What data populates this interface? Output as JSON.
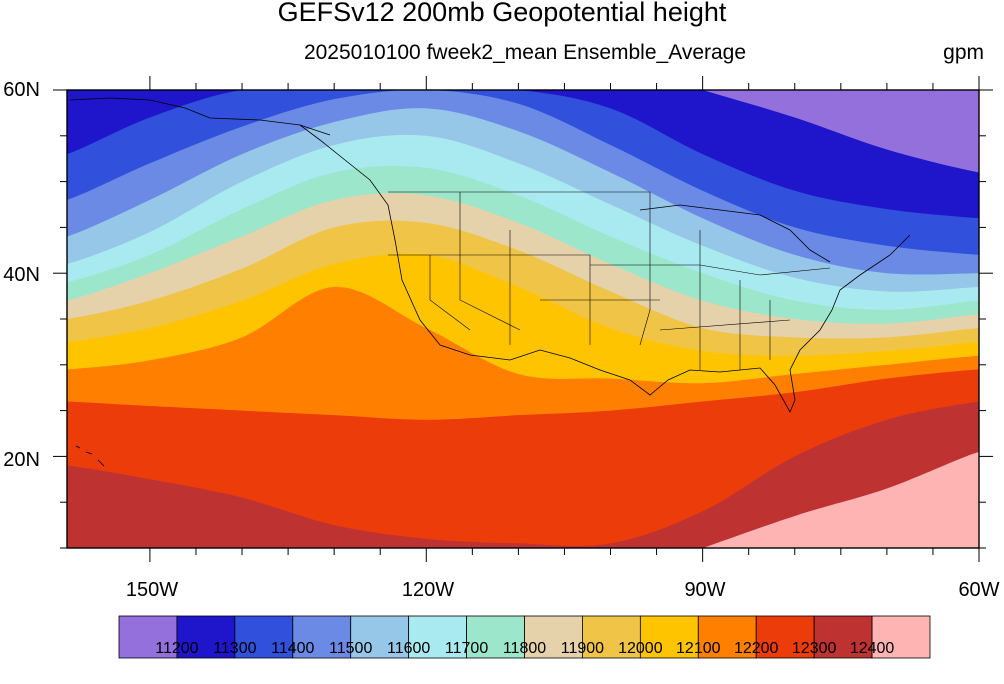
{
  "title": "GEFSv12 200mb Geopotential height",
  "subtitle": "2025010100 fweek2_mean Ensemble_Average",
  "units": "gpm",
  "lat_labels": [
    "60N",
    "40N",
    "20N"
  ],
  "lon_labels": [
    "150W",
    "120W",
    "90W",
    "60W"
  ],
  "colorbar": {
    "colors": [
      "#9370db",
      "#1f16cc",
      "#3150db",
      "#6b8ae6",
      "#96c6e8",
      "#a9e9f0",
      "#9ce6cc",
      "#e6d2aa",
      "#f0c446",
      "#ffc400",
      "#ff8000",
      "#eb3c0a",
      "#be3232",
      "#ffb4b4"
    ],
    "labels": [
      "11200",
      "11300",
      "11400",
      "11500",
      "11600",
      "11700",
      "11800",
      "11900",
      "12000",
      "12100",
      "12200",
      "12300",
      "12400"
    ]
  },
  "chart_data": {
    "type": "heatmap",
    "title": "GEFSv12 200mb Geopotential height",
    "subtitle": "2025010100 fweek2_mean Ensemble_Average",
    "units": "gpm",
    "lon_range": [
      -159,
      -60
    ],
    "lat_range": [
      10,
      60
    ],
    "contour_levels": [
      11200,
      11300,
      11400,
      11500,
      11600,
      11700,
      11800,
      11900,
      12000,
      12100,
      12200,
      12300,
      12400
    ],
    "contour_lat_profiles": {
      "lon": [
        -159,
        -150,
        -140,
        -130,
        -120,
        -110,
        -100,
        -90,
        -80,
        -70,
        -60
      ],
      "12400": [
        null,
        null,
        null,
        null,
        null,
        null,
        null,
        null,
        13.5,
        16.5,
        20.5
      ],
      "12300": [
        19,
        17.5,
        15.5,
        12.5,
        11,
        10.5,
        10.5,
        14,
        20,
        24,
        26
      ],
      "12200": [
        26,
        25.5,
        25,
        24.5,
        24,
        24.5,
        25,
        26,
        27,
        28.5,
        29.5
      ],
      "12100": [
        29.5,
        30.5,
        33,
        38.5,
        34,
        29,
        28.5,
        28,
        29,
        30,
        31
      ],
      "12000": [
        32.5,
        34,
        37,
        41,
        42,
        38.5,
        34,
        31.5,
        31,
        31.5,
        32.5
      ],
      "11900": [
        35,
        37,
        40.5,
        45,
        45.5,
        42.5,
        38,
        34,
        33,
        33,
        34
      ],
      "11800": [
        37,
        40,
        44,
        48,
        48.5,
        45.5,
        41,
        37,
        35,
        34.5,
        35.5
      ],
      "11700": [
        39,
        42,
        47,
        51,
        51.5,
        48.5,
        44,
        40,
        37,
        36,
        37
      ],
      "11600": [
        41,
        44.5,
        50,
        54,
        55,
        52,
        47.5,
        43,
        39.5,
        38,
        38.5
      ],
      "11500": [
        44,
        48,
        53,
        56.5,
        58,
        55.5,
        51,
        46,
        42,
        40,
        40
      ],
      "11400": [
        48,
        52,
        56,
        59,
        60,
        58.5,
        54,
        49,
        45,
        43,
        42
      ],
      "11300": [
        53,
        57,
        60,
        60,
        60,
        60,
        58,
        53,
        49,
        47,
        46
      ],
      "11200": [
        null,
        null,
        null,
        null,
        null,
        null,
        null,
        60,
        57,
        53.5,
        51
      ]
    }
  },
  "icons": [
    "map-plot",
    "coastline-overlay",
    "state-borders-overlay"
  ]
}
